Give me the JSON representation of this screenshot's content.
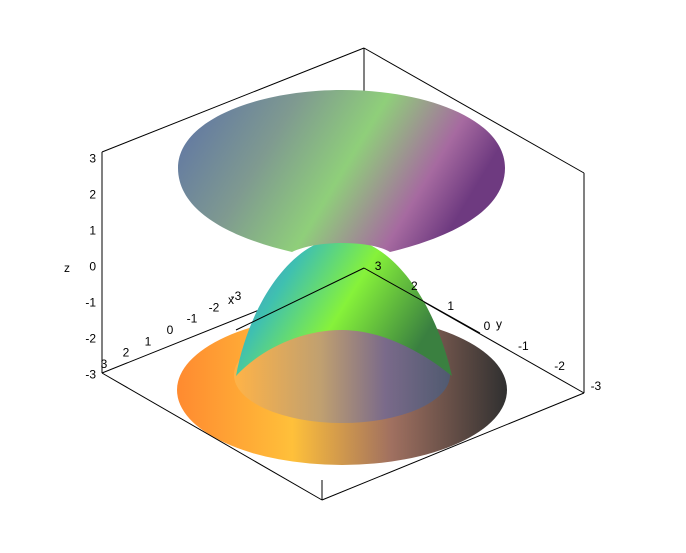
{
  "chart_data": {
    "type": "surface3d",
    "title": "",
    "axes": {
      "x": {
        "label": "x",
        "ticks": [
          "3",
          "2",
          "1",
          "0",
          "-1",
          "-2",
          "-3"
        ],
        "range": [
          -3,
          3
        ]
      },
      "y": {
        "label": "y",
        "ticks": [
          "3",
          "2",
          "1",
          "0",
          "-1",
          "-2",
          "-3"
        ],
        "range": [
          -3,
          3
        ]
      },
      "z": {
        "label": "z",
        "ticks": [
          "3",
          "2",
          "1",
          "0",
          "-1",
          "-2",
          "-3"
        ],
        "range": [
          -3,
          3
        ]
      }
    },
    "surfaces": [
      {
        "name": "",
        "kind": "upper cone",
        "z_range": [
          0.5,
          3
        ],
        "colormap": "purple-teal-green"
      },
      {
        "name": "",
        "kind": "paraboloid cap",
        "z_range": [
          -3,
          0.1
        ],
        "colormap": "blue-green"
      },
      {
        "name": "",
        "kind": "lower annulus",
        "z_range": [
          -3,
          -2.6
        ],
        "colormap": "orange-yellow"
      }
    ],
    "box": "frame"
  }
}
